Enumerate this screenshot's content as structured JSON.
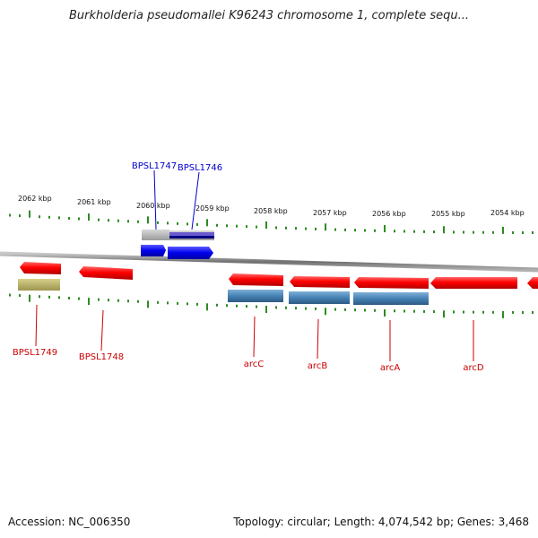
{
  "title": "Burkholderia pseudomallei K96243 chromosome 1, complete sequ...",
  "footer": {
    "accession": "Accession: NC_006350",
    "info": "Topology: circular; Length: 4,074,542 bp; Genes: 3,468"
  },
  "colors": {
    "forward_gene": "#ff0000",
    "cds_blue": "#4682b4",
    "label_red": "#cc0000",
    "label_blue": "#0000cc",
    "tick_green": "#2e8b22",
    "backbone": "#888888"
  },
  "scale_labels": [
    "2062 kbp",
    "2061 kbp",
    "2060 kbp",
    "2059 kbp",
    "2058 kbp",
    "2057 kbp",
    "2056 kbp",
    "2055 kbp",
    "2054 kbp"
  ],
  "genes": [
    {
      "name": "BPSL1749",
      "color": "red"
    },
    {
      "name": "BPSL1748",
      "color": "red"
    },
    {
      "name": "BPSL1747",
      "color": "blue"
    },
    {
      "name": "BPSL1746",
      "color": "blue"
    },
    {
      "name": "arcC",
      "color": "red"
    },
    {
      "name": "arcB",
      "color": "red"
    },
    {
      "name": "arcA",
      "color": "red"
    },
    {
      "name": "arcD",
      "color": "red"
    }
  ]
}
